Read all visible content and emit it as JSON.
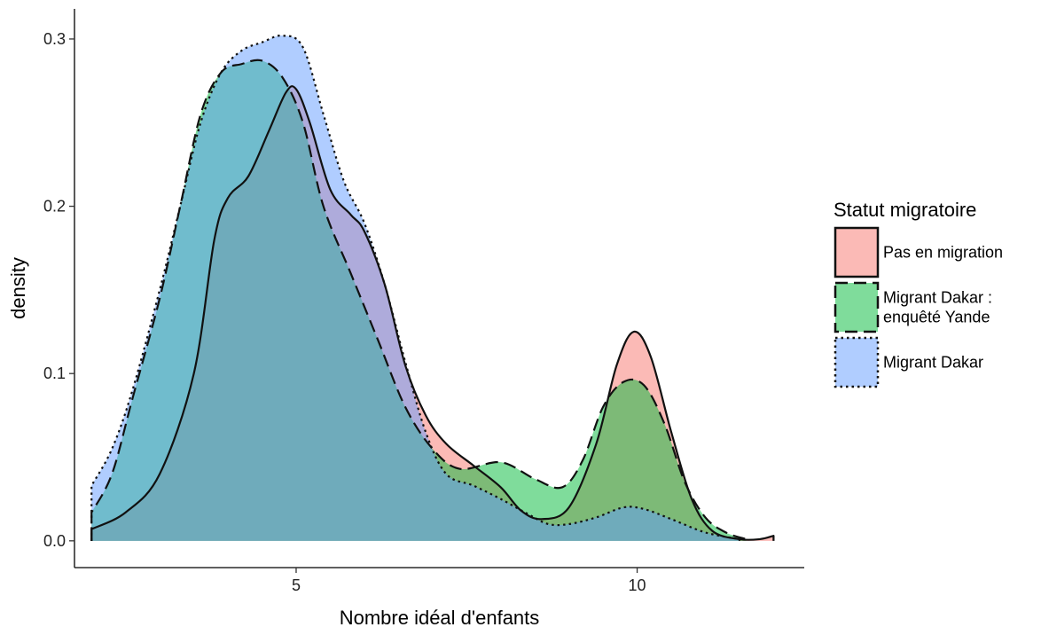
{
  "chart_data": {
    "type": "area",
    "title": "",
    "xlabel": "Nombre idéal d'enfants",
    "ylabel": "density",
    "xlim": [
      1.75,
      12.45
    ],
    "ylim": [
      -0.016,
      0.318
    ],
    "x_ticks": [
      5,
      10
    ],
    "x_tick_labels": [
      "5",
      "10"
    ],
    "y_ticks": [
      0.0,
      0.1,
      0.2,
      0.3
    ],
    "y_tick_labels": [
      "0.0",
      "0.1",
      "0.2",
      "0.3"
    ],
    "grid": false,
    "legend": {
      "title": "Statut migratoire",
      "position": "right",
      "entries": [
        {
          "label_lines": [
            "Pas en migration"
          ],
          "color": "#F8766D",
          "linetype": "solid"
        },
        {
          "label_lines": [
            "Migrant Dakar :",
            "enquêté Yande"
          ],
          "color": "#00BA38",
          "linetype": "dashed"
        },
        {
          "label_lines": [
            "Migrant Dakar"
          ],
          "color": "#619CFF",
          "linetype": "dotted"
        }
      ]
    },
    "series": [
      {
        "color": "#F8766D",
        "linetype": "solid",
        "points": [
          [
            2,
            0.007
          ],
          [
            2.5,
            0.017
          ],
          [
            3,
            0.04
          ],
          [
            3.5,
            0.1
          ],
          [
            3.8,
            0.18
          ],
          [
            4,
            0.205
          ],
          [
            4.3,
            0.218
          ],
          [
            4.6,
            0.245
          ],
          [
            4.85,
            0.268
          ],
          [
            5,
            0.27
          ],
          [
            5.2,
            0.25
          ],
          [
            5.5,
            0.21
          ],
          [
            5.8,
            0.195
          ],
          [
            6,
            0.185
          ],
          [
            6.3,
            0.153
          ],
          [
            6.6,
            0.105
          ],
          [
            6.9,
            0.075
          ],
          [
            7.2,
            0.058
          ],
          [
            7.6,
            0.045
          ],
          [
            8,
            0.032
          ],
          [
            8.3,
            0.018
          ],
          [
            8.6,
            0.013
          ],
          [
            9,
            0.02
          ],
          [
            9.4,
            0.058
          ],
          [
            9.7,
            0.105
          ],
          [
            9.95,
            0.125
          ],
          [
            10.2,
            0.11
          ],
          [
            10.5,
            0.065
          ],
          [
            10.8,
            0.025
          ],
          [
            11.1,
            0.006
          ],
          [
            11.5,
            0.001
          ],
          [
            11.8,
            0.001
          ],
          [
            12,
            0.003
          ]
        ]
      },
      {
        "color": "#00BA38",
        "linetype": "dashed",
        "points": [
          [
            2,
            0.017
          ],
          [
            2.3,
            0.04
          ],
          [
            2.6,
            0.085
          ],
          [
            3,
            0.145
          ],
          [
            3.3,
            0.2
          ],
          [
            3.6,
            0.255
          ],
          [
            3.9,
            0.28
          ],
          [
            4.2,
            0.285
          ],
          [
            4.5,
            0.287
          ],
          [
            4.8,
            0.277
          ],
          [
            5.1,
            0.25
          ],
          [
            5.4,
            0.2
          ],
          [
            5.8,
            0.16
          ],
          [
            6.2,
            0.12
          ],
          [
            6.6,
            0.08
          ],
          [
            7,
            0.055
          ],
          [
            7.4,
            0.043
          ],
          [
            8,
            0.047
          ],
          [
            8.5,
            0.037
          ],
          [
            8.9,
            0.032
          ],
          [
            9.2,
            0.048
          ],
          [
            9.5,
            0.08
          ],
          [
            9.8,
            0.095
          ],
          [
            10.1,
            0.093
          ],
          [
            10.4,
            0.07
          ],
          [
            10.7,
            0.035
          ],
          [
            11,
            0.014
          ],
          [
            11.3,
            0.005
          ],
          [
            11.6,
            0.001
          ]
        ]
      },
      {
        "color": "#619CFF",
        "linetype": "dotted",
        "points": [
          [
            2,
            0.033
          ],
          [
            2.3,
            0.055
          ],
          [
            2.6,
            0.09
          ],
          [
            3,
            0.15
          ],
          [
            3.3,
            0.2
          ],
          [
            3.6,
            0.25
          ],
          [
            3.9,
            0.28
          ],
          [
            4.2,
            0.293
          ],
          [
            4.5,
            0.298
          ],
          [
            4.8,
            0.302
          ],
          [
            5.1,
            0.295
          ],
          [
            5.4,
            0.255
          ],
          [
            5.7,
            0.215
          ],
          [
            6,
            0.19
          ],
          [
            6.3,
            0.153
          ],
          [
            6.6,
            0.107
          ],
          [
            6.9,
            0.065
          ],
          [
            7.2,
            0.04
          ],
          [
            7.6,
            0.033
          ],
          [
            8,
            0.025
          ],
          [
            8.4,
            0.016
          ],
          [
            8.7,
            0.01
          ],
          [
            9,
            0.01
          ],
          [
            9.4,
            0.014
          ],
          [
            9.8,
            0.02
          ],
          [
            10.1,
            0.019
          ],
          [
            10.5,
            0.013
          ],
          [
            11,
            0.005
          ],
          [
            11.5,
            0.001
          ]
        ]
      }
    ]
  }
}
